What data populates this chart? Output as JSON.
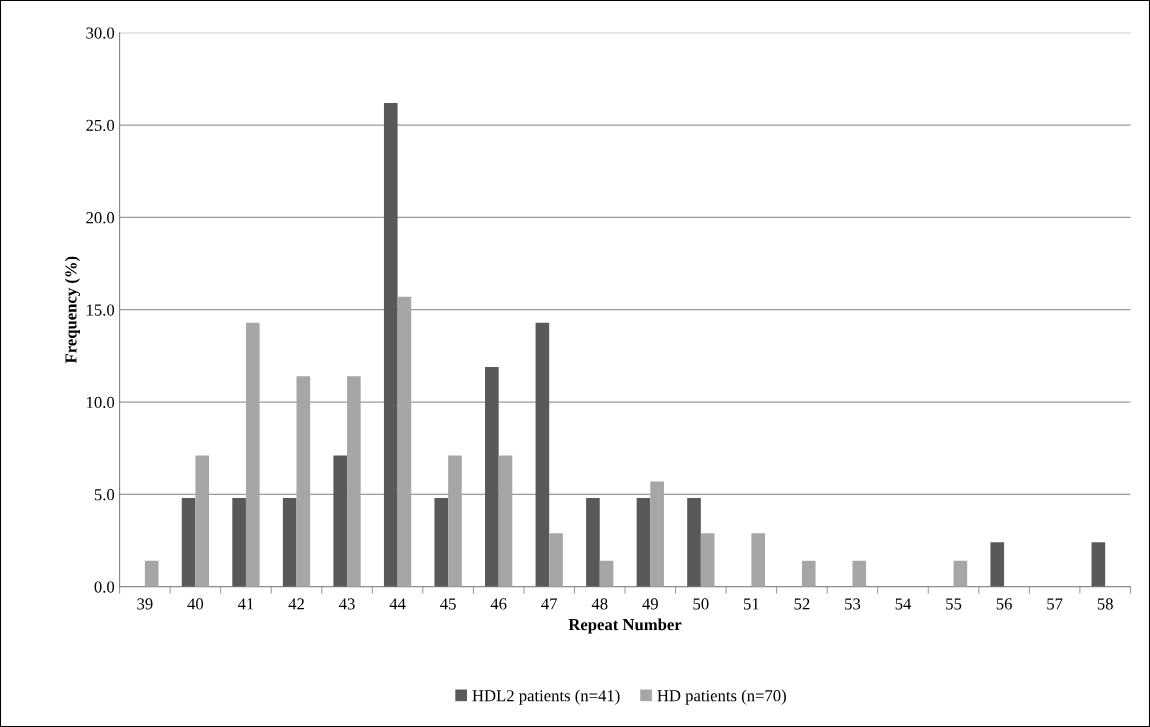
{
  "chart_data": {
    "type": "bar",
    "xlabel": "Repeat Number",
    "ylabel": "Frequency (%)",
    "categories": [
      "39",
      "40",
      "41",
      "42",
      "43",
      "44",
      "45",
      "46",
      "47",
      "48",
      "49",
      "50",
      "51",
      "52",
      "53",
      "54",
      "55",
      "56",
      "57",
      "58"
    ],
    "series": [
      {
        "name": "HDL2 patients (n=41)",
        "color": "#595959",
        "values": [
          0,
          4.8,
          4.8,
          4.8,
          7.1,
          26.2,
          4.8,
          11.9,
          14.3,
          4.8,
          4.8,
          4.8,
          0,
          0,
          0,
          0,
          0,
          2.4,
          0,
          2.4
        ]
      },
      {
        "name": "HD patients (n=70)",
        "color": "#a6a6a6",
        "values": [
          1.4,
          7.1,
          14.3,
          11.4,
          11.4,
          15.7,
          7.1,
          7.1,
          2.9,
          1.4,
          5.7,
          2.9,
          2.9,
          1.4,
          1.4,
          0,
          1.4,
          0,
          0,
          0
        ]
      }
    ],
    "ylim": [
      0,
      30
    ],
    "yticks": [
      {
        "value": 0,
        "label": "0.0"
      },
      {
        "value": 5,
        "label": "5.0"
      },
      {
        "value": 10,
        "label": "10.0"
      },
      {
        "value": 15,
        "label": "15.0"
      },
      {
        "value": 20,
        "label": "20.0"
      },
      {
        "value": 25,
        "label": "25.0"
      },
      {
        "value": 30,
        "label": "30.0"
      }
    ],
    "grid": "y",
    "legend": "bottom"
  }
}
